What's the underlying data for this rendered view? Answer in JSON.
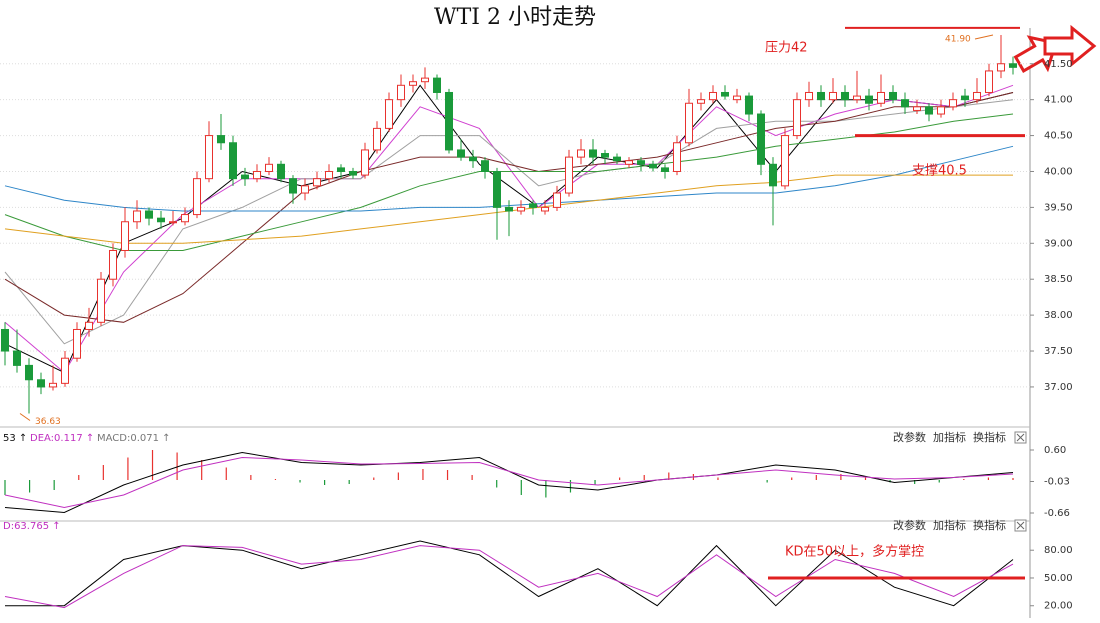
{
  "chart_data": [
    {
      "type": "candlestick",
      "title": "WTI 2 小时走势",
      "up_color": "#e8322e",
      "down_color": "#1a9a3a",
      "ohlc": [
        [
          37.8,
          37.9,
          37.3,
          37.5
        ],
        [
          37.5,
          37.8,
          37.2,
          37.3
        ],
        [
          37.3,
          37.4,
          36.63,
          37.1
        ],
        [
          37.1,
          37.2,
          36.9,
          37.0
        ],
        [
          37.0,
          37.3,
          36.95,
          37.05
        ],
        [
          37.05,
          37.5,
          37.0,
          37.4
        ],
        [
          37.4,
          37.9,
          37.35,
          37.8
        ],
        [
          37.8,
          38.1,
          37.7,
          37.9
        ],
        [
          37.9,
          38.6,
          37.85,
          38.5
        ],
        [
          38.5,
          39.0,
          38.4,
          38.9
        ],
        [
          38.9,
          39.5,
          38.8,
          39.3
        ],
        [
          39.3,
          39.6,
          39.2,
          39.45
        ],
        [
          39.45,
          39.5,
          39.25,
          39.35
        ],
        [
          39.35,
          39.45,
          39.2,
          39.3
        ],
        [
          39.3,
          39.45,
          39.25,
          39.3
        ],
        [
          39.3,
          39.5,
          39.25,
          39.4
        ],
        [
          39.4,
          40.0,
          39.35,
          39.9
        ],
        [
          39.9,
          40.7,
          39.85,
          40.5
        ],
        [
          40.5,
          40.8,
          40.3,
          40.4
        ],
        [
          40.4,
          40.5,
          39.8,
          39.9
        ],
        [
          39.95,
          40.05,
          39.8,
          39.9
        ],
        [
          39.9,
          40.1,
          39.85,
          40.0
        ],
        [
          40.0,
          40.2,
          39.95,
          40.1
        ],
        [
          40.1,
          40.15,
          39.85,
          39.9
        ],
        [
          39.9,
          39.95,
          39.55,
          39.7
        ],
        [
          39.7,
          39.9,
          39.6,
          39.8
        ],
        [
          39.8,
          40.0,
          39.75,
          39.9
        ],
        [
          39.9,
          40.1,
          39.85,
          40.0
        ],
        [
          40.05,
          40.1,
          39.9,
          40.0
        ],
        [
          40.0,
          40.05,
          39.9,
          39.95
        ],
        [
          39.95,
          40.4,
          39.9,
          40.3
        ],
        [
          40.3,
          40.7,
          40.25,
          40.6
        ],
        [
          40.6,
          41.1,
          40.55,
          41.0
        ],
        [
          41.0,
          41.35,
          40.9,
          41.2
        ],
        [
          41.2,
          41.35,
          41.1,
          41.25
        ],
        [
          41.25,
          41.45,
          41.15,
          41.3
        ],
        [
          41.3,
          41.35,
          41.0,
          41.1
        ],
        [
          41.1,
          41.15,
          40.25,
          40.3
        ],
        [
          40.3,
          40.45,
          40.15,
          40.2
        ],
        [
          40.2,
          40.3,
          40.05,
          40.15
        ],
        [
          40.15,
          40.2,
          39.9,
          40.0
        ],
        [
          40.0,
          40.05,
          39.05,
          39.5
        ],
        [
          39.5,
          39.6,
          39.1,
          39.45
        ],
        [
          39.45,
          39.6,
          39.4,
          39.5
        ],
        [
          39.55,
          39.6,
          39.4,
          39.5
        ],
        [
          39.45,
          39.6,
          39.4,
          39.5
        ],
        [
          39.5,
          39.8,
          39.45,
          39.7
        ],
        [
          39.7,
          40.3,
          39.65,
          40.2
        ],
        [
          40.2,
          40.45,
          40.1,
          40.3
        ],
        [
          40.3,
          40.45,
          40.1,
          40.2
        ],
        [
          40.25,
          40.3,
          40.1,
          40.2
        ],
        [
          40.2,
          40.25,
          40.1,
          40.15
        ],
        [
          40.1,
          40.2,
          40.05,
          40.15
        ],
        [
          40.15,
          40.2,
          40.0,
          40.1
        ],
        [
          40.1,
          40.15,
          40.0,
          40.05
        ],
        [
          40.05,
          40.1,
          39.9,
          40.0
        ],
        [
          40.0,
          40.5,
          39.95,
          40.4
        ],
        [
          40.4,
          41.15,
          40.35,
          40.95
        ],
        [
          40.95,
          41.1,
          40.85,
          41.0
        ],
        [
          41.0,
          41.2,
          40.95,
          41.1
        ],
        [
          41.1,
          41.2,
          41.0,
          41.05
        ],
        [
          41.0,
          41.15,
          40.95,
          41.05
        ],
        [
          41.05,
          41.1,
          40.7,
          40.8
        ],
        [
          40.8,
          40.85,
          39.95,
          40.1
        ],
        [
          40.1,
          40.2,
          39.25,
          39.8
        ],
        [
          39.8,
          40.6,
          39.75,
          40.5
        ],
        [
          40.5,
          41.1,
          40.45,
          41.0
        ],
        [
          41.0,
          41.25,
          40.9,
          41.1
        ],
        [
          41.1,
          41.2,
          40.9,
          41.0
        ],
        [
          41.0,
          41.3,
          40.95,
          41.1
        ],
        [
          41.1,
          41.2,
          40.9,
          41.0
        ],
        [
          41.0,
          41.4,
          40.95,
          41.05
        ],
        [
          41.05,
          41.15,
          40.85,
          40.95
        ],
        [
          40.95,
          41.35,
          40.9,
          41.1
        ],
        [
          41.1,
          41.2,
          40.95,
          41.0
        ],
        [
          41.0,
          41.1,
          40.8,
          40.9
        ],
        [
          40.85,
          41.0,
          40.8,
          40.9
        ],
        [
          40.9,
          40.95,
          40.7,
          40.8
        ],
        [
          40.8,
          41.0,
          40.75,
          40.9
        ],
        [
          40.9,
          41.1,
          40.85,
          41.0
        ],
        [
          41.05,
          41.15,
          40.9,
          41.0
        ],
        [
          41.0,
          41.3,
          40.95,
          41.1
        ],
        [
          41.1,
          41.5,
          41.05,
          41.4
        ],
        [
          41.4,
          41.9,
          41.3,
          41.5
        ],
        [
          41.5,
          41.6,
          41.35,
          41.45
        ]
      ],
      "ma_lines": [
        {
          "color": "#000000",
          "values": [
            37.6,
            37.2,
            39.0,
            39.35,
            40.0,
            39.8,
            40.0,
            41.2,
            40.1,
            39.5,
            40.2,
            40.05,
            41.0,
            40.0,
            41.0,
            41.0,
            40.9,
            41.1
          ]
        },
        {
          "color": "#d040d0",
          "values": [
            37.9,
            37.2,
            38.6,
            39.4,
            39.9,
            39.9,
            39.9,
            40.9,
            40.6,
            39.5,
            40.1,
            40.1,
            40.9,
            40.5,
            40.8,
            41.0,
            40.9,
            41.2
          ]
        },
        {
          "color": "#a0a0a0",
          "values": [
            38.6,
            37.6,
            38.0,
            39.2,
            39.5,
            39.9,
            39.9,
            40.5,
            40.5,
            39.8,
            40.0,
            40.1,
            40.6,
            40.7,
            40.7,
            40.8,
            40.9,
            41.0
          ]
        },
        {
          "color": "#7a2a2a",
          "values": [
            38.5,
            38.0,
            37.9,
            38.3,
            39.0,
            39.7,
            40.0,
            40.2,
            40.2,
            40.0,
            40.1,
            40.2,
            40.4,
            40.6,
            40.7,
            40.9,
            40.9,
            41.1
          ]
        },
        {
          "color": "#3a9a3a",
          "values": [
            39.4,
            39.1,
            38.9,
            38.9,
            39.1,
            39.3,
            39.5,
            39.8,
            40.0,
            40.0,
            40.0,
            40.1,
            40.2,
            40.35,
            40.45,
            40.55,
            40.7,
            40.8
          ]
        },
        {
          "color": "#2e86c8",
          "values": [
            39.8,
            39.6,
            39.5,
            39.45,
            39.45,
            39.45,
            39.45,
            39.5,
            39.5,
            39.55,
            39.6,
            39.65,
            39.7,
            39.7,
            39.8,
            39.95,
            40.15,
            40.35
          ]
        },
        {
          "color": "#e0a020",
          "values": [
            39.2,
            39.1,
            39.0,
            39.0,
            39.05,
            39.1,
            39.2,
            39.3,
            39.4,
            39.5,
            39.6,
            39.7,
            39.8,
            39.85,
            39.95,
            39.95,
            39.95,
            39.95
          ]
        }
      ],
      "ylim": [
        36.47,
        41.97
      ],
      "yticks": [
        {
          "value": 41.5,
          "label": "41.50"
        },
        {
          "value": 41,
          "label": "41.00"
        },
        {
          "value": 40.5,
          "label": "40.50"
        },
        {
          "value": 40,
          "label": "40.00"
        },
        {
          "value": 39.5,
          "label": "39.50"
        },
        {
          "value": 39,
          "label": "39.00"
        },
        {
          "value": 38.5,
          "label": "38.50"
        },
        {
          "value": 38,
          "label": "38.00"
        },
        {
          "value": 37.5,
          "label": "37.50"
        },
        {
          "value": 37,
          "label": "37.00"
        }
      ],
      "grid": true,
      "resistance": 42,
      "resistance_label": "压力42",
      "support": 40.5,
      "support_label": "支撑40.5",
      "high_label": {
        "value": 41.9,
        "label": "41.90"
      },
      "low_label": 36.63
    },
    {
      "type": "macd",
      "header": [
        "53 ↑",
        "DEA:0.117 ↑",
        "MACD:0.071 ↑"
      ],
      "buttons": [
        "改参数",
        "加指标",
        "换指标"
      ],
      "up_color": "#e8322e",
      "down_color": "#1a9a3a",
      "bars": [
        -0.3,
        -0.25,
        -0.2,
        0.1,
        0.3,
        0.45,
        0.6,
        0.55,
        0.4,
        0.25,
        0.1,
        0.02,
        -0.05,
        -0.1,
        -0.08,
        0.05,
        0.15,
        0.22,
        0.2,
        0.1,
        -0.15,
        -0.3,
        -0.35,
        -0.25,
        -0.1,
        0.05,
        0.1,
        0.15,
        0.12,
        0.05,
        0.0,
        -0.05,
        0.05,
        0.1,
        0.12,
        0.05,
        -0.05,
        -0.08,
        -0.05,
        0.02,
        0.05,
        0.04
      ],
      "lines": [
        {
          "color": "#000000",
          "values": [
            -0.55,
            -0.65,
            -0.1,
            0.3,
            0.55,
            0.35,
            0.3,
            0.35,
            0.45,
            -0.1,
            -0.2,
            0.0,
            0.1,
            0.3,
            0.2,
            -0.05,
            0.05,
            0.15
          ]
        },
        {
          "color": "#c030c0",
          "values": [
            -0.3,
            -0.55,
            -0.3,
            0.2,
            0.45,
            0.4,
            0.32,
            0.33,
            0.35,
            0.0,
            -0.1,
            0.0,
            0.1,
            0.2,
            0.1,
            0.02,
            0.05,
            0.12
          ]
        }
      ],
      "ylim": [
        -0.8,
        0.8
      ],
      "yticks": [
        {
          "value": 0.6,
          "label": "0.60"
        },
        -0.03,
        -0.66
      ]
    },
    {
      "type": "line",
      "header": [
        "D:63.765 ↑"
      ],
      "buttons": [
        "改参数",
        "加指标",
        "换指标"
      ],
      "series": [
        {
          "color": "#000000",
          "values": [
            20,
            20,
            70,
            85,
            80,
            60,
            75,
            90,
            75,
            30,
            60,
            20,
            85,
            20,
            80,
            40,
            20,
            70
          ]
        },
        {
          "color": "#c030c0",
          "values": [
            30,
            18,
            55,
            85,
            83,
            65,
            70,
            85,
            80,
            40,
            55,
            30,
            75,
            30,
            70,
            55,
            30,
            65
          ]
        }
      ],
      "ylim": [
        10,
        104
      ],
      "yticks": [
        {
          "value": 80,
          "label": "80.00"
        },
        {
          "value": 50,
          "label": "50.00"
        },
        {
          "value": 20,
          "label": "20.00"
        }
      ],
      "reference": 50,
      "note": "KD在50以上，多方掌控"
    }
  ]
}
